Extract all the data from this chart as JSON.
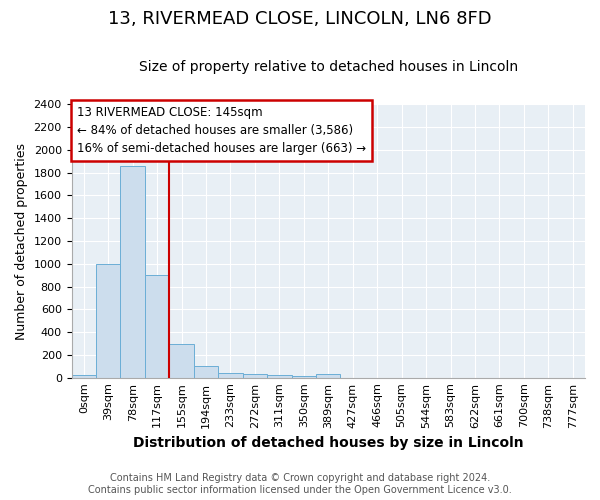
{
  "title_line1": "13, RIVERMEAD CLOSE, LINCOLN, LN6 8FD",
  "title_line2": "Size of property relative to detached houses in Lincoln",
  "xlabel": "Distribution of detached houses by size in Lincoln",
  "ylabel": "Number of detached properties",
  "categories": [
    "0sqm",
    "39sqm",
    "78sqm",
    "117sqm",
    "155sqm",
    "194sqm",
    "233sqm",
    "272sqm",
    "311sqm",
    "350sqm",
    "389sqm",
    "427sqm",
    "466sqm",
    "505sqm",
    "544sqm",
    "583sqm",
    "622sqm",
    "661sqm",
    "700sqm",
    "738sqm",
    "777sqm"
  ],
  "values": [
    20,
    1000,
    1860,
    900,
    300,
    100,
    45,
    30,
    20,
    15,
    30,
    0,
    0,
    0,
    0,
    0,
    0,
    0,
    0,
    0,
    0
  ],
  "bar_color": "#ccdded",
  "bar_edge_color": "#6baed6",
  "ylim": [
    0,
    2400
  ],
  "yticks": [
    0,
    200,
    400,
    600,
    800,
    1000,
    1200,
    1400,
    1600,
    1800,
    2000,
    2200,
    2400
  ],
  "vline_x_index": 4,
  "vline_color": "#cc0000",
  "annotation_text": "13 RIVERMEAD CLOSE: 145sqm\n← 84% of detached houses are smaller (3,586)\n16% of semi-detached houses are larger (663) →",
  "annotation_box_color": "white",
  "annotation_box_edge_color": "#cc0000",
  "footer_line1": "Contains HM Land Registry data © Crown copyright and database right 2024.",
  "footer_line2": "Contains public sector information licensed under the Open Government Licence v3.0.",
  "plot_bg_color": "#e8eff5",
  "fig_bg_color": "white",
  "title_fontsize": 13,
  "subtitle_fontsize": 10,
  "xlabel_fontsize": 10,
  "ylabel_fontsize": 9,
  "tick_fontsize": 8,
  "annotation_fontsize": 8.5,
  "footer_fontsize": 7
}
